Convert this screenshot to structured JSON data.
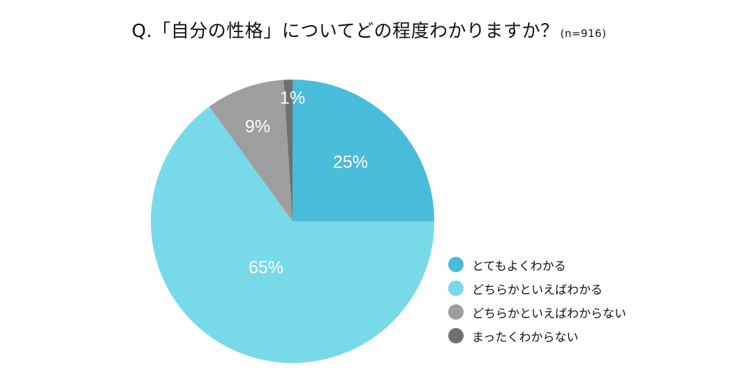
{
  "title": {
    "main": "Q.「自分の性格」についてどの程度わかりますか？",
    "sample": "(n=916)"
  },
  "chart_data": {
    "type": "pie",
    "title": "Q.「自分の性格」についてどの程度わかりますか？(n=916)",
    "categories": [
      "とてもよくわかる",
      "どちらかといえばわかる",
      "どちらかといえばわからない",
      "まったくわからない"
    ],
    "values": [
      25,
      65,
      9,
      1
    ],
    "labels": [
      "25%",
      "65%",
      "9%",
      "1%"
    ],
    "unit": "%",
    "colors": [
      "#49bcd9",
      "#78d9e8",
      "#9e9e9e",
      "#707070"
    ],
    "start_angle_deg": 0,
    "direction": "clockwise",
    "legend_position": "bottom-right"
  }
}
